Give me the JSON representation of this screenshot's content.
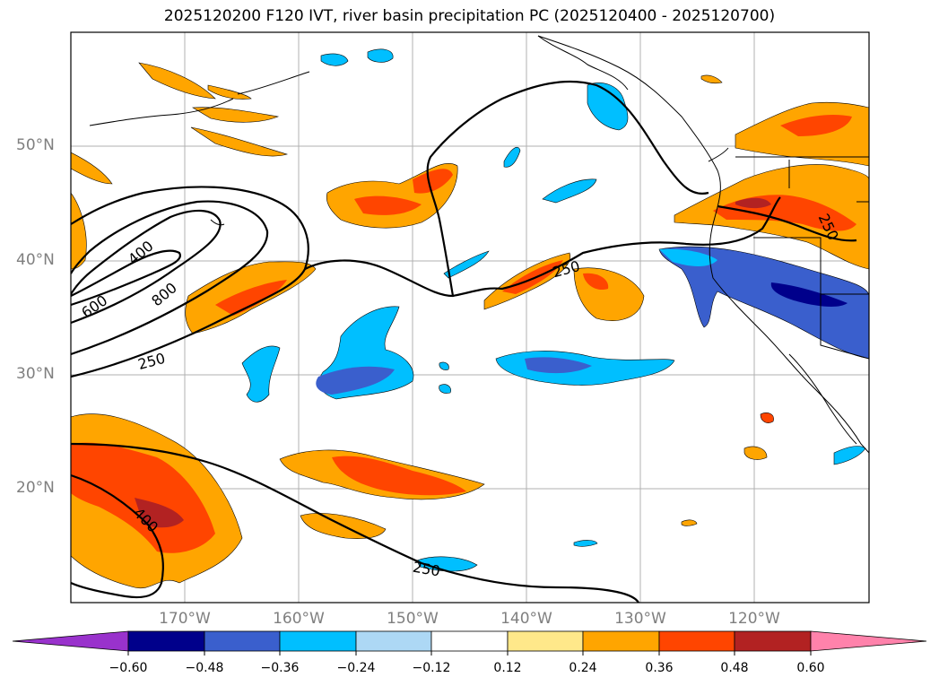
{
  "title": "2025120200 F120 IVT, river basin precipitation PC (2025120400 - 2025120700)",
  "lat_labels": [
    "50°N",
    "40°N",
    "30°N",
    "20°N"
  ],
  "lon_labels": [
    "170°W",
    "160°W",
    "150°W",
    "140°W",
    "130°W",
    "120°W"
  ],
  "contour_labels": [
    "400",
    "800",
    "600",
    "250",
    "250",
    "250",
    "400",
    "250"
  ],
  "colorbar": {
    "ticks": [
      "−0.60",
      "−0.48",
      "−0.36",
      "−0.24",
      "−0.12",
      "0.12",
      "0.24",
      "0.36",
      "0.48",
      "0.60"
    ],
    "colors": {
      "under": "#9932cc",
      "c1": "#00008b",
      "c2": "#3a5fcd",
      "c3": "#00bfff",
      "c4": "#add8f5",
      "c5": "#ffffff",
      "c6": "#ffe88a",
      "c7": "#ffa500",
      "c8": "#ff4500",
      "c9": "#b22222",
      "over": "#ff82ab"
    }
  }
}
